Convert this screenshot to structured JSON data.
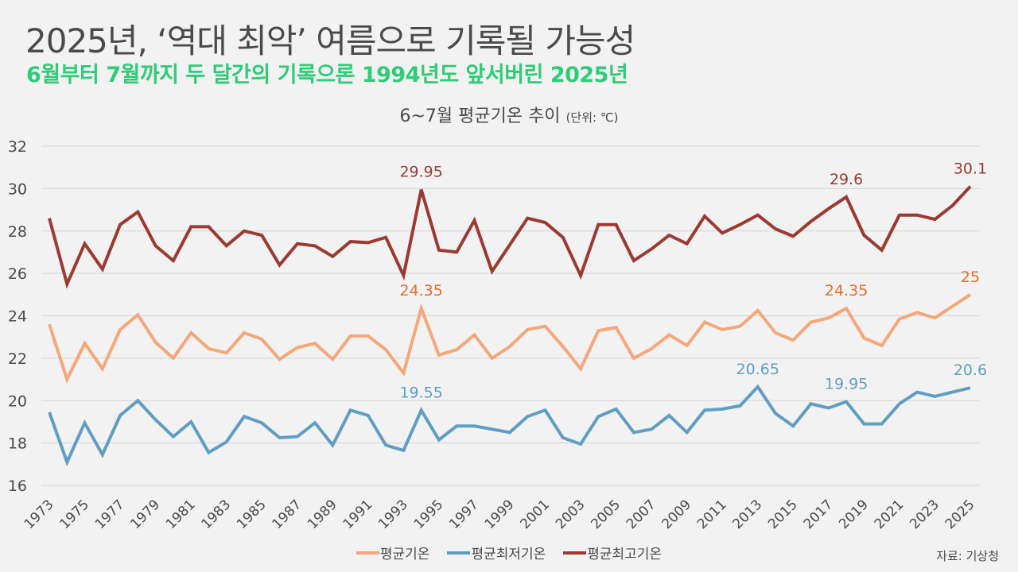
{
  "header": {
    "title": "2025년, ‘역대 최악’ 여름으로 기록될 가능성",
    "subtitle": "6월부터 7월까지 두 달간의 기록으론 1994년도 앞서버린 2025년"
  },
  "source": "자료: 기상청",
  "chart_data": {
    "type": "line",
    "title": "6~7월 평균기온 추이",
    "unit_note": "(단위: ℃)",
    "xlabel": "",
    "ylabel": "",
    "ylim": [
      16,
      32
    ],
    "yticks": [
      16,
      18,
      20,
      22,
      24,
      26,
      28,
      30,
      32
    ],
    "grid": true,
    "legend_position": "bottom-center",
    "x": [
      1973,
      1974,
      1975,
      1976,
      1977,
      1978,
      1979,
      1980,
      1981,
      1982,
      1983,
      1984,
      1985,
      1986,
      1987,
      1988,
      1989,
      1990,
      1991,
      1992,
      1993,
      1994,
      1995,
      1996,
      1997,
      1998,
      1999,
      2000,
      2001,
      2002,
      2003,
      2004,
      2005,
      2006,
      2007,
      2008,
      2009,
      2010,
      2011,
      2012,
      2013,
      2014,
      2015,
      2016,
      2017,
      2018,
      2019,
      2020,
      2021,
      2022,
      2023,
      2024,
      2025
    ],
    "xtick_labels": [
      "1973",
      "1975",
      "1977",
      "1979",
      "1981",
      "1983",
      "1985",
      "1987",
      "1989",
      "1991",
      "1993",
      "1995",
      "1997",
      "1999",
      "2001",
      "2003",
      "2005",
      "2007",
      "2009",
      "2011",
      "2013",
      "2015",
      "2017",
      "2019",
      "2021",
      "2023",
      "2025"
    ],
    "series": [
      {
        "name": "평균기온",
        "color": "#f4a77a",
        "label_color": "#ee6b2c",
        "values": [
          23.6,
          21.0,
          22.7,
          21.5,
          23.35,
          24.05,
          22.75,
          22.0,
          23.2,
          22.45,
          22.25,
          23.2,
          22.9,
          21.95,
          22.5,
          22.7,
          21.95,
          23.05,
          23.05,
          22.4,
          21.3,
          24.35,
          22.15,
          22.4,
          23.1,
          22.0,
          22.55,
          23.35,
          23.5,
          22.55,
          21.5,
          23.3,
          23.45,
          22.0,
          22.45,
          23.1,
          22.6,
          23.7,
          23.35,
          23.5,
          24.25,
          23.2,
          22.85,
          23.7,
          23.9,
          24.35,
          22.95,
          22.6,
          23.85,
          24.15,
          23.9,
          24.45,
          25.0
        ],
        "annotations": [
          {
            "year": 1994,
            "text": "24.35"
          },
          {
            "year": 2018,
            "text": "24.35"
          },
          {
            "year": 2025,
            "text": "25"
          }
        ]
      },
      {
        "name": "평균최저기온",
        "color": "#5f9ec2",
        "label_color": "#5f9ec2",
        "values": [
          19.45,
          17.1,
          18.95,
          17.45,
          19.3,
          20.0,
          19.1,
          18.3,
          19.0,
          17.55,
          18.05,
          19.25,
          18.95,
          18.25,
          18.3,
          18.95,
          17.9,
          19.55,
          19.3,
          17.9,
          17.65,
          19.55,
          18.15,
          18.8,
          18.8,
          18.65,
          18.5,
          19.25,
          19.55,
          18.25,
          17.95,
          19.25,
          19.6,
          18.5,
          18.65,
          19.3,
          18.5,
          19.55,
          19.6,
          19.75,
          20.65,
          19.4,
          18.8,
          19.85,
          19.65,
          19.95,
          18.9,
          18.9,
          19.85,
          20.4,
          20.2,
          20.4,
          20.6
        ],
        "annotations": [
          {
            "year": 1994,
            "text": "19.55"
          },
          {
            "year": 2013,
            "text": "20.65"
          },
          {
            "year": 2018,
            "text": "19.95"
          },
          {
            "year": 2025,
            "text": "20.6"
          }
        ]
      },
      {
        "name": "평균최고기온",
        "color": "#9b3a32",
        "label_color": "#9b3a32",
        "values": [
          28.6,
          25.5,
          27.4,
          26.2,
          28.3,
          28.9,
          27.3,
          26.6,
          28.2,
          28.2,
          27.3,
          28.0,
          27.8,
          26.4,
          27.4,
          27.3,
          26.8,
          27.5,
          27.45,
          27.7,
          25.9,
          29.95,
          27.1,
          27.0,
          28.5,
          26.1,
          27.35,
          28.6,
          28.4,
          27.7,
          25.9,
          28.3,
          28.3,
          26.6,
          27.15,
          27.8,
          27.4,
          28.7,
          27.9,
          28.3,
          28.75,
          28.1,
          27.75,
          28.45,
          29.05,
          29.6,
          27.8,
          27.1,
          28.75,
          28.75,
          28.55,
          29.2,
          30.1
        ],
        "annotations": [
          {
            "year": 1994,
            "text": "29.95"
          },
          {
            "year": 2018,
            "text": "29.6"
          },
          {
            "year": 2025,
            "text": "30.1"
          }
        ]
      }
    ]
  }
}
